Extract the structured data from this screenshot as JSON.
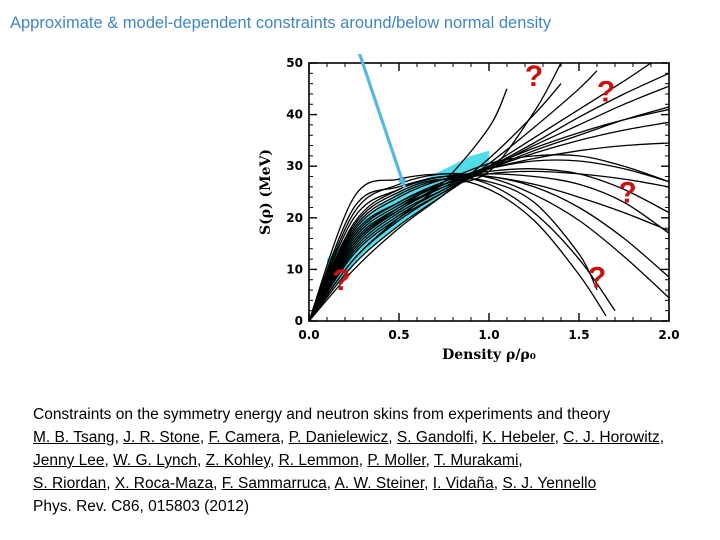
{
  "slide": {
    "title": "Approximate & model-dependent constraints around/below normal density"
  },
  "caption": {
    "heading": "Constraints on the symmetry energy and neutron skins from experiments and theory",
    "authors": [
      "M. B. Tsang",
      "J. R. Stone",
      "F. Camera",
      "P. Danielewicz",
      "S. Gandolfi",
      "K. Hebeler",
      "C. J. Horowitz",
      "Jenny Lee",
      "W. G. Lynch",
      "Z. Kohley",
      "R. Lemmon",
      "P. Moller",
      "T. Murakami",
      "S. Riordan",
      "X. Roca-Maza",
      "F. Sammarruca",
      "A. W. Steiner",
      "I. Vidaña",
      "S. J. Yennello"
    ],
    "reference": "Phys. Rev. C86, 015803 (2012)"
  },
  "chart_data": {
    "type": "line",
    "xlabel": "Density ρ/ρ₀",
    "ylabel": "S(ρ)  (MeV)",
    "xlim": [
      0.0,
      2.0
    ],
    "ylim": [
      0,
      50
    ],
    "x_ticks": [
      "0.0",
      "0.5",
      "1.0",
      "1.5",
      "2.0"
    ],
    "y_ticks": [
      "0",
      "10",
      "20",
      "30",
      "40",
      "50"
    ],
    "grid": false,
    "highlight_color": "#33d6e6",
    "annotation_color": "#cc1111",
    "question_marks": [
      {
        "text": "?",
        "x": 1.25,
        "y": 45.5
      },
      {
        "text": "?",
        "x": 1.65,
        "y": 42.5
      },
      {
        "text": "?",
        "x": 1.77,
        "y": 23.0
      },
      {
        "text": "?",
        "x": 0.18,
        "y": 6.0
      },
      {
        "text": "?",
        "x": 1.6,
        "y": 6.5
      }
    ],
    "arrow": {
      "from": [
        0.25,
        55.0
      ],
      "to": [
        0.53,
        26.0
      ],
      "color": "#55b8e0"
    },
    "constraint_band": {
      "x": [
        0.1,
        0.3,
        0.5,
        0.7,
        0.9,
        1.0
      ],
      "lower": [
        5.0,
        13.0,
        18.5,
        23.5,
        28.0,
        29.5
      ],
      "upper": [
        12.0,
        20.0,
        25.0,
        28.5,
        32.0,
        33.0
      ]
    },
    "series": [
      {
        "x": [
          0,
          0.25,
          0.5,
          0.75,
          1.0,
          1.25,
          1.5,
          1.75,
          2.0
        ],
        "values": [
          0,
          24.0,
          27.5,
          28.5,
          28.0,
          26.5,
          24.0,
          21.0,
          17.5
        ]
      },
      {
        "x": [
          0,
          0.25,
          0.5,
          0.75,
          1.0,
          1.25,
          1.5,
          1.75,
          2.0
        ],
        "values": [
          0,
          21.0,
          26.5,
          28.5,
          27.8,
          24.5,
          19.5,
          12.5,
          4.5
        ]
      },
      {
        "x": [
          0,
          0.25,
          0.5,
          0.75,
          1.0,
          1.25,
          1.5,
          1.7
        ],
        "values": [
          0,
          19.0,
          25.5,
          28.0,
          26.5,
          21.0,
          12.0,
          2.0
        ]
      },
      {
        "x": [
          0,
          0.25,
          0.5,
          0.75,
          1.0,
          1.25,
          1.5,
          1.65
        ],
        "values": [
          0,
          18.5,
          25.0,
          27.5,
          25.5,
          19.5,
          9.0,
          1.0
        ]
      },
      {
        "x": [
          0,
          0.25,
          0.5,
          0.75,
          1.0,
          1.25,
          1.5,
          1.75,
          2.0
        ],
        "values": [
          0,
          17.0,
          23.0,
          26.5,
          28.5,
          29.0,
          28.5,
          27.5,
          26.0
        ]
      },
      {
        "x": [
          0,
          0.25,
          0.5,
          0.75,
          1.0,
          1.25,
          1.5,
          1.75,
          2.0
        ],
        "values": [
          0,
          16.0,
          22.5,
          26.5,
          29.5,
          31.5,
          33.0,
          34.0,
          34.5
        ]
      },
      {
        "x": [
          0,
          0.25,
          0.5,
          0.75,
          1.0,
          1.25,
          1.5,
          1.75,
          2.0
        ],
        "values": [
          0,
          15.0,
          21.5,
          26.0,
          29.5,
          32.5,
          35.0,
          37.0,
          38.5
        ]
      },
      {
        "x": [
          0,
          0.25,
          0.5,
          0.75,
          1.0,
          1.25,
          1.5,
          1.75,
          2.0
        ],
        "values": [
          0,
          14.0,
          21.0,
          25.5,
          29.5,
          33.0,
          36.0,
          39.0,
          41.5
        ]
      },
      {
        "x": [
          0,
          0.25,
          0.5,
          0.75,
          1.0,
          1.25,
          1.5,
          1.75,
          2.0
        ],
        "values": [
          0,
          13.0,
          20.0,
          25.0,
          29.5,
          34.0,
          38.0,
          42.0,
          45.5
        ]
      },
      {
        "x": [
          0,
          0.25,
          0.5,
          0.75,
          1.0,
          1.25,
          1.5,
          1.75,
          1.9
        ],
        "values": [
          0,
          12.0,
          19.5,
          25.0,
          30.0,
          35.5,
          41.0,
          46.5,
          50.0
        ]
      },
      {
        "x": [
          0,
          0.25,
          0.5,
          0.75,
          1.0,
          1.25,
          1.5,
          1.6
        ],
        "values": [
          0,
          11.0,
          18.5,
          24.5,
          30.5,
          37.5,
          45.0,
          48.5
        ]
      },
      {
        "x": [
          0,
          0.25,
          0.5,
          0.75,
          1.0,
          1.25,
          1.4
        ],
        "values": [
          0,
          10.0,
          18.0,
          24.5,
          31.5,
          40.0,
          46.0
        ]
      },
      {
        "x": [
          0,
          0.25,
          0.5,
          0.75,
          1.0,
          1.25,
          1.4
        ],
        "values": [
          0,
          15.5,
          22.0,
          26.0,
          29.0,
          40.5,
          50.0
        ]
      },
      {
        "x": [
          0,
          0.25,
          0.5,
          0.75,
          1.0,
          1.1
        ],
        "values": [
          0,
          12.0,
          20.0,
          27.0,
          37.5,
          45.0
        ]
      },
      {
        "x": [
          0,
          0.25,
          0.5,
          0.75,
          1.0,
          1.25,
          1.5,
          1.75,
          2.0
        ],
        "values": [
          0,
          22.0,
          26.0,
          28.0,
          28.5,
          28.0,
          26.5,
          23.0,
          17.0
        ]
      },
      {
        "x": [
          0,
          0.25,
          0.5,
          0.75,
          1.0,
          1.25,
          1.5,
          1.75,
          2.0
        ],
        "values": [
          0,
          15.0,
          22.0,
          27.0,
          30.5,
          32.0,
          32.0,
          30.0,
          27.0
        ]
      },
      {
        "x": [
          0,
          0.25,
          0.5,
          0.75,
          1.0,
          1.25,
          1.5,
          1.75,
          2.0
        ],
        "values": [
          0,
          17.5,
          24.0,
          27.5,
          29.0,
          29.5,
          28.5,
          25.5,
          21.0
        ]
      },
      {
        "x": [
          0,
          0.25,
          0.5,
          0.75,
          1.0,
          1.25,
          1.5,
          1.75,
          2.0
        ],
        "values": [
          0,
          20.0,
          25.5,
          28.0,
          28.0,
          26.0,
          22.0,
          16.0,
          8.5
        ]
      },
      {
        "x": [
          0,
          0.25,
          0.5,
          0.75,
          1.0,
          1.25,
          1.5,
          1.6
        ],
        "values": [
          0,
          18.0,
          24.5,
          27.5,
          27.0,
          23.0,
          13.0,
          6.0
        ]
      },
      {
        "x": [
          0,
          0.25,
          0.5,
          0.75,
          1.0,
          1.25,
          1.5,
          1.75,
          2.0
        ],
        "values": [
          0,
          14.5,
          21.5,
          26.5,
          30.0,
          33.5,
          36.5,
          39.0,
          41.0
        ]
      },
      {
        "x": [
          0,
          0.25,
          0.5,
          0.75,
          1.0,
          1.25,
          1.5,
          1.75,
          2.0
        ],
        "values": [
          0,
          16.5,
          23.0,
          27.0,
          29.5,
          31.0,
          31.0,
          29.5,
          27.0
        ]
      },
      {
        "x": [
          0,
          0.25,
          0.5,
          0.75,
          1.0,
          1.25,
          1.5,
          1.75,
          2.0
        ],
        "values": [
          0,
          13.5,
          20.5,
          25.5,
          29.8,
          34.5,
          39.5,
          44.0,
          48.0
        ]
      }
    ]
  }
}
